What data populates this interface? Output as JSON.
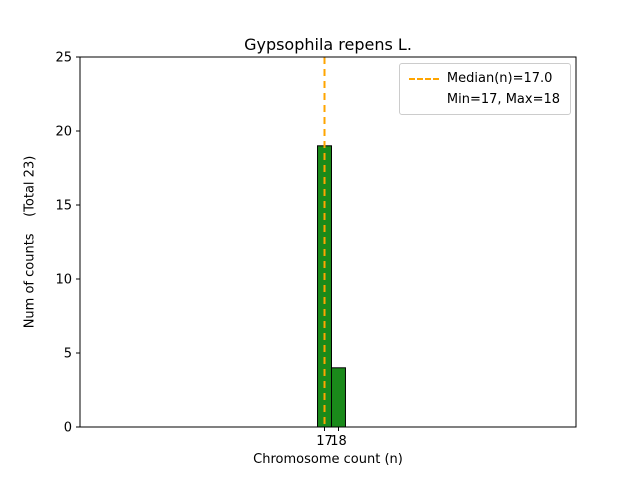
{
  "chart_data": {
    "type": "bar",
    "title": "Gypsophila repens L.",
    "xlabel": "Chromosome count (n)",
    "ylabel": "Num of counts    (Total 23)",
    "total_counts": 23,
    "bins": [
      {
        "x": 17,
        "count": 19
      },
      {
        "x": 18,
        "count": 4
      }
    ],
    "median": 17.0,
    "min": 17,
    "max": 18,
    "xlim": [
      -0.5,
      35
    ],
    "ylim": [
      0,
      25
    ],
    "xticks": [
      17,
      18
    ],
    "yticks": [
      0,
      5,
      10,
      15,
      20,
      25
    ],
    "bar_color": "#1a8a1a",
    "bar_edge_color": "#000000",
    "median_line_color": "#ffa500",
    "legend": {
      "entries": [
        "Median(n)=17.0",
        "Min=17, Max=18"
      ],
      "position": "upper right"
    },
    "grid": false
  }
}
